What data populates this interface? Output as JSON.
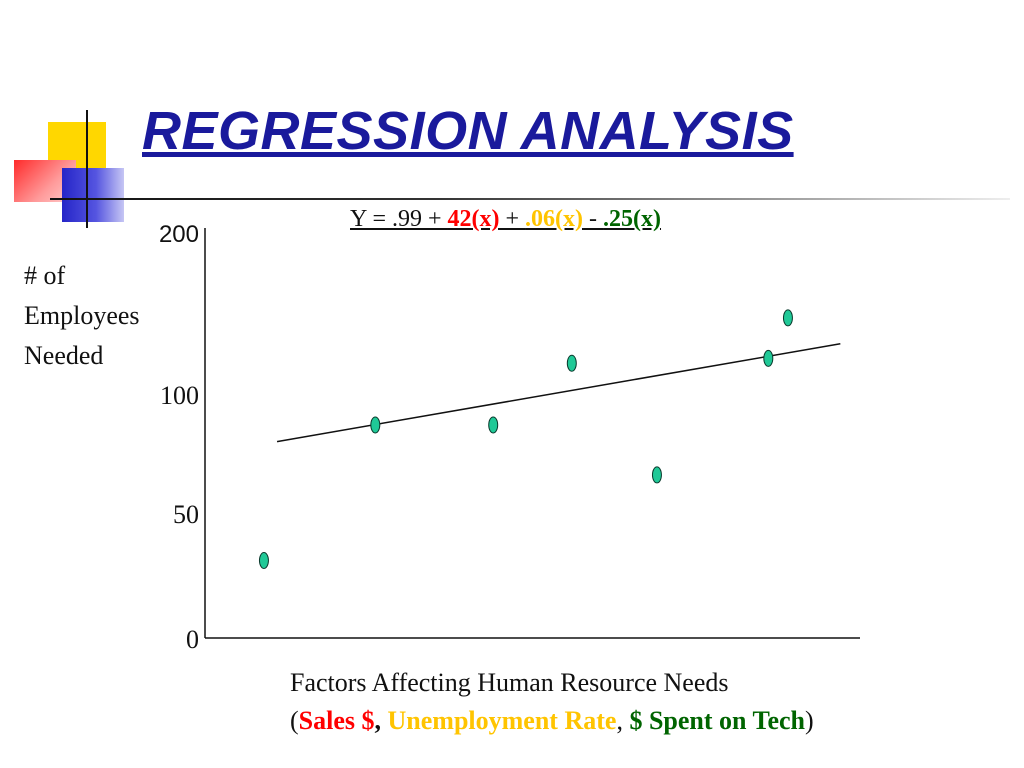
{
  "slide": {
    "title": "REGRESSION ANALYSIS"
  },
  "equation": {
    "prefix": "Y = .99 + ",
    "term1": "42(x)",
    "op1": " + ",
    "term2": ".06(x)",
    "op2": " - ",
    "term3": ".25(x)",
    "colors": {
      "term1": "#ff0000",
      "term2": "#ffc400",
      "term3": "#006400"
    }
  },
  "ylabel_lines": [
    "# of",
    "Employees",
    "Needed"
  ],
  "xlabel": "Factors Affecting Human Resource Needs",
  "factors": {
    "open": "(",
    "sales": "Sales $",
    "sep1": ",",
    "unemployment": "Unemployment Rate",
    "sep2": ",",
    "tech": "$ Spent on Tech",
    "close": ")",
    "colors": {
      "sales": "#ff0000",
      "unemployment": "#ffc400",
      "tech": "#006400"
    }
  },
  "chart_data": {
    "type": "scatter",
    "title": "",
    "xlabel": "Factors Affecting Human Resource Needs",
    "ylabel": "# of Employees Needed",
    "y_ticks": [
      {
        "label": "0",
        "value": 0
      },
      {
        "label": "50",
        "value": 50
      },
      {
        "label": "100",
        "value": 100
      },
      {
        "label": "200",
        "value": 200
      }
    ],
    "x_range": [
      0,
      10
    ],
    "points": [
      {
        "x": 0.9,
        "y": 31
      },
      {
        "x": 2.6,
        "y": 87
      },
      {
        "x": 4.4,
        "y": 87
      },
      {
        "x": 5.6,
        "y": 119
      },
      {
        "x": 6.9,
        "y": 66
      },
      {
        "x": 8.6,
        "y": 122
      },
      {
        "x": 8.9,
        "y": 147
      }
    ],
    "trend_line": {
      "x": [
        1.1,
        9.7
      ],
      "y": [
        80,
        131
      ]
    },
    "point_color": "#20c997",
    "grid": false,
    "legend": "none"
  }
}
